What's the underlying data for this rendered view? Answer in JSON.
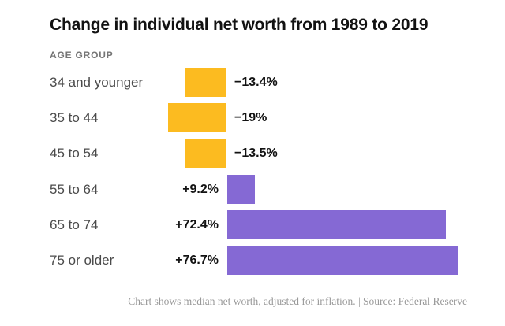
{
  "header": {
    "title": "Change in individual net worth from 1989 to 2019",
    "axis_label": "AGE GROUP"
  },
  "footer": {
    "text": "Chart shows median net worth, adjusted for inflation. | Source: Federal Reserve"
  },
  "chart_data": {
    "type": "bar",
    "orientation": "horizontal-diverging",
    "title": "Change in individual net worth from 1989 to 2019",
    "ylabel": "AGE GROUP",
    "xlabel": "",
    "units": "percent",
    "grid": false,
    "xlim": [
      -19,
      92
    ],
    "categories": [
      "34 and younger",
      "35 to 44",
      "45 to 54",
      "55 to 64",
      "65 to 74",
      "75 or older"
    ],
    "values": [
      -13.4,
      -19,
      -13.5,
      9.2,
      72.4,
      76.7
    ],
    "value_labels": [
      "−13.4%",
      "−19%",
      "−13.5%",
      "+9.2%",
      "+72.4%",
      "+76.7%"
    ],
    "colors": {
      "negative": "#fcbb20",
      "positive": "#8569d4",
      "title_text": "#121212",
      "category_text": "#4b4b4b",
      "value_text": "#121212",
      "footnote_text": "#999999"
    },
    "annotations": [
      "Chart shows median net worth, adjusted for inflation.",
      "Source: Federal Reserve"
    ]
  }
}
